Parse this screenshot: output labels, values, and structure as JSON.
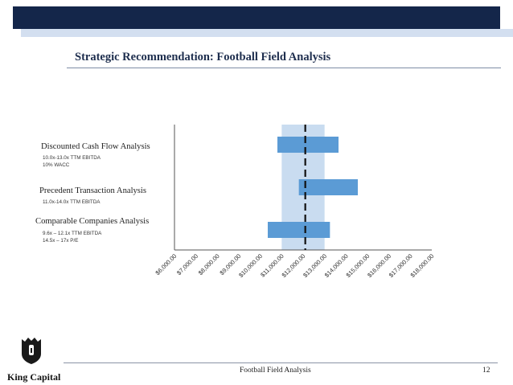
{
  "slide": {
    "title": "Strategic Recommendation: Football Field Analysis",
    "footer_title": "Football Field Analysis",
    "page_number": "12",
    "brand_name": "King Capital"
  },
  "colors": {
    "header_band": "#14264a",
    "bar": "#5b9bd5",
    "range_band": "#c9dcf0",
    "dashed_line": "#111111"
  },
  "chart_data": {
    "type": "bar",
    "orientation": "horizontal-floating",
    "title": "",
    "xlabel": "",
    "ylabel": "",
    "xlim": [
      6000,
      18000
    ],
    "x_ticks": [
      "$6,000.00",
      "$7,000.00",
      "$8,000.00",
      "$9,000.00",
      "$10,000.00",
      "$11,000.00",
      "$12,000.00",
      "$13,000.00",
      "$14,000.00",
      "$15,000.00",
      "$16,000.00",
      "$17,000.00",
      "$18,000.00"
    ],
    "series": [
      {
        "label": "Discounted Cash Flow Analysis",
        "notes": [
          "10.0x-13.0x TTM EBITDA",
          "10% WACC"
        ],
        "low": 10800,
        "high": 13650
      },
      {
        "label": "Precedent Transaction Analysis",
        "notes": [
          "11.0x-14.0x TTM EBITDA"
        ],
        "low": 11800,
        "high": 14550
      },
      {
        "label": "Comparable Companies Analysis",
        "notes": [
          "9.6x – 12.1x TTM EBITDA",
          "14.5x – 17x P/E"
        ],
        "low": 10350,
        "high": 13250
      }
    ],
    "highlight_range": [
      11000,
      13000
    ],
    "reference_line": 12100,
    "grid": false,
    "legend": "none"
  }
}
